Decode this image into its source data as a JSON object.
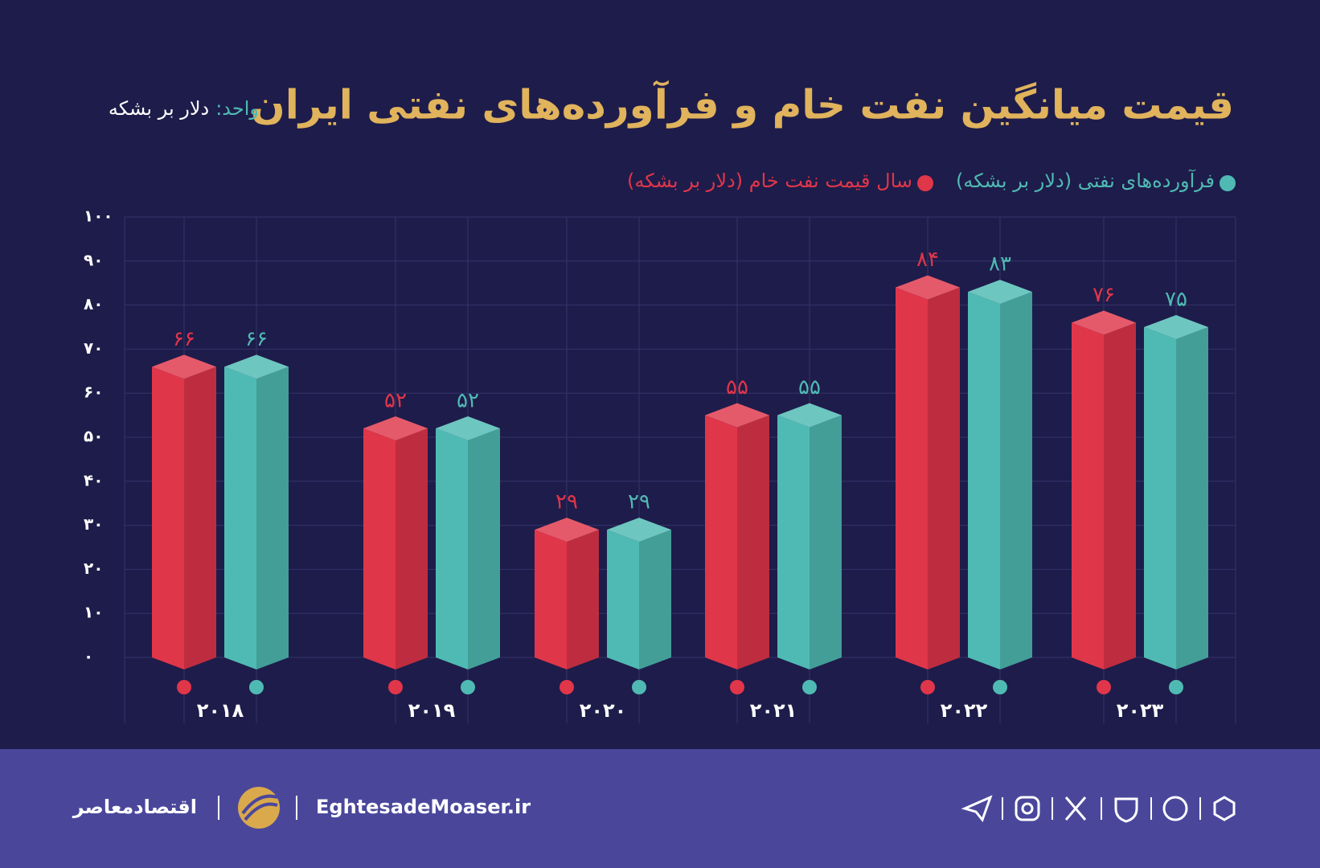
{
  "chart_data": {
    "type": "bar3d",
    "title": "قیمت میانگین نفت خام و فرآورده‌های نفتی ایران",
    "unit_label": "واحد:",
    "unit": "دلار بر بشکه",
    "categories": [
      "۲۰۱۸",
      "۲۰۱۹",
      "۲۰۲۰",
      "۲۰۲۱",
      "۲۰۲۲",
      "۲۰۲۳"
    ],
    "series": [
      {
        "name": "سال قیمت نفت خام (دلار بر بشکه)",
        "color": "#e0364a",
        "values": [
          66,
          52,
          29,
          55,
          84,
          76
        ],
        "value_labels": [
          "۶۶",
          "۵۲",
          "۲۹",
          "۵۵",
          "۸۴",
          "۷۶"
        ]
      },
      {
        "name": "فرآورده‌های نفتی (دلار بر بشکه)",
        "color": "#4fbab3",
        "values": [
          66,
          52,
          29,
          55,
          83,
          75
        ],
        "value_labels": [
          "۶۶",
          "۵۲",
          "۲۹",
          "۵۵",
          "۸۳",
          "۷۵"
        ]
      }
    ],
    "ylim": [
      0,
      100
    ],
    "yticks": [
      {
        "value": 0,
        "label": "۰"
      },
      {
        "value": 10,
        "label": "۱۰"
      },
      {
        "value": 20,
        "label": "۲۰"
      },
      {
        "value": 30,
        "label": "۳۰"
      },
      {
        "value": 40,
        "label": "۴۰"
      },
      {
        "value": 50,
        "label": "۵۰"
      },
      {
        "value": 60,
        "label": "۶۰"
      },
      {
        "value": 70,
        "label": "۷۰"
      },
      {
        "value": 80,
        "label": "۸۰"
      },
      {
        "value": 90,
        "label": "۹۰"
      },
      {
        "value": 100,
        "label": "۱۰۰"
      }
    ],
    "grid": true
  },
  "footer": {
    "site": "EghtesadeMoaser.ir",
    "brand": "اقتصادمعاصر"
  }
}
